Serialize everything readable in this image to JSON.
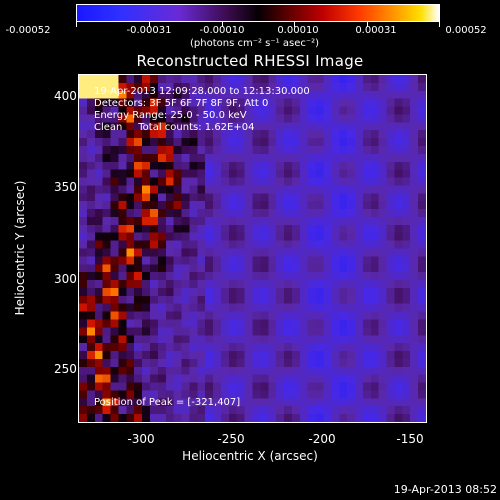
{
  "colorbar": {
    "tick_labels": [
      "-0.00052",
      "-0.00031",
      "-0.00010",
      "0.00010",
      "0.00031",
      "0.00052"
    ],
    "unit": "(photons cm⁻² s⁻¹ asec⁻²)"
  },
  "title": "Reconstructed RHESSI Image",
  "info": {
    "time_range": "19-Apr-2013 12:09:28.000 to 12:13:30.000",
    "detectors": "Detectors: 3F 5F 6F 7F 8F 9F, Att 0",
    "energy": "Energy Range: 25.0 - 50.0 keV",
    "clean": "Clean     Total counts: 1.62E+04"
  },
  "peak": "Position of Peak = [-321,407]",
  "axes": {
    "xlabel": "Heliocentric X (arcsec)",
    "ylabel": "Heliocentric Y (arcsec)",
    "xticks": [
      "-300",
      "-250",
      "-200",
      "-150"
    ],
    "yticks": [
      "400",
      "350",
      "300",
      "250"
    ]
  },
  "timestamp": "19-Apr-2013 08:52",
  "chart_data": {
    "type": "heatmap",
    "title": "Reconstructed RHESSI Image",
    "xlabel": "Heliocentric X (arcsec)",
    "ylabel": "Heliocentric Y (arcsec)",
    "xlim": [
      -335,
      -143
    ],
    "ylim": [
      220,
      412
    ],
    "colorbar_range": [
      -0.00052,
      0.00052
    ],
    "colormap": [
      "#1818ff",
      "#6a2ad6",
      "#050005",
      "#c00000",
      "#ff9a00",
      "#ffffff"
    ]
  }
}
